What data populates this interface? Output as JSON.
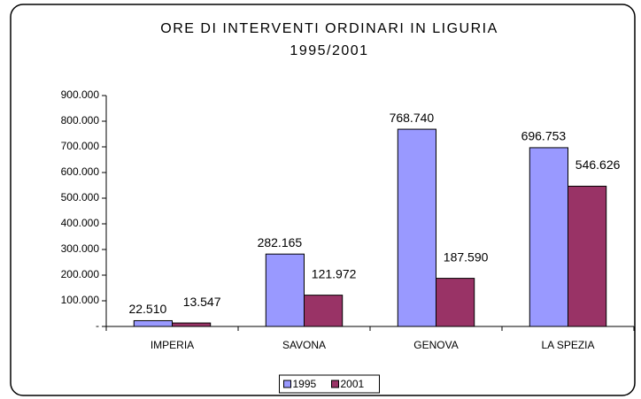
{
  "chart_data": {
    "type": "bar",
    "title": "ORE DI INTERVENTI ORDINARI IN LIGURIA",
    "subtitle": "1995/2001",
    "categories": [
      "IMPERIA",
      "SAVONA",
      "GENOVA",
      "LA SPEZIA"
    ],
    "series": [
      {
        "name": "1995",
        "color": "#9999ff",
        "values": [
          22510,
          282165,
          768740,
          696753
        ],
        "value_labels": [
          "22.510",
          "282.165",
          "768.740",
          "696.753"
        ]
      },
      {
        "name": "2001",
        "color": "#993366",
        "values": [
          13547,
          121972,
          187590,
          546626
        ],
        "value_labels": [
          "13.547",
          "121.972",
          "187.590",
          "546.626"
        ]
      }
    ],
    "ylim": [
      0,
      900000
    ],
    "yticks": [
      {
        "value": 0,
        "label": "-"
      },
      {
        "value": 100000,
        "label": "100.000"
      },
      {
        "value": 200000,
        "label": "200.000"
      },
      {
        "value": 300000,
        "label": "300.000"
      },
      {
        "value": 400000,
        "label": "400.000"
      },
      {
        "value": 500000,
        "label": "500.000"
      },
      {
        "value": 600000,
        "label": "600.000"
      },
      {
        "value": 700000,
        "label": "700.000"
      },
      {
        "value": 800000,
        "label": "800.000"
      },
      {
        "value": 900000,
        "label": "900.000"
      }
    ],
    "grid": false,
    "legend": "bottom"
  }
}
